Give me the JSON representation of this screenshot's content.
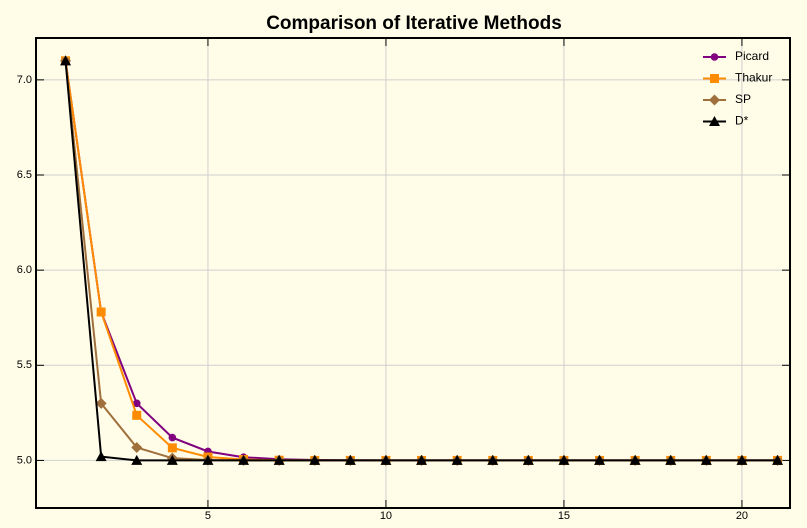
{
  "chart_data": {
    "type": "line",
    "title": "Comparison of Iterative Methods",
    "x": [
      1,
      2,
      3,
      4,
      5,
      6,
      7,
      8,
      9,
      10,
      11,
      12,
      13,
      14,
      15,
      16,
      17,
      18,
      19,
      20,
      21
    ],
    "series": [
      {
        "name": "Picard",
        "color": "#800080",
        "marker": "circle",
        "values": [
          7.1,
          5.78,
          5.3,
          5.12,
          5.047,
          5.017,
          5.006,
          5.002,
          5.001,
          5,
          5,
          5,
          5,
          5,
          5,
          5,
          5,
          5,
          5,
          5,
          5
        ]
      },
      {
        "name": "Thakur",
        "color": "#ff8c00",
        "marker": "square",
        "values": [
          7.1,
          5.78,
          5.237,
          5.066,
          5.018,
          5.005,
          5.001,
          5,
          5,
          5,
          5,
          5,
          5,
          5,
          5,
          5,
          5,
          5,
          5,
          5,
          5
        ]
      },
      {
        "name": "SP",
        "color": "#a0703c",
        "marker": "diamond",
        "values": [
          7.1,
          5.3,
          5.068,
          5.012,
          5.002,
          5,
          5,
          5,
          5,
          5,
          5,
          5,
          5,
          5,
          5,
          5,
          5,
          5,
          5,
          5,
          5
        ]
      },
      {
        "name": "D*",
        "color": "#000000",
        "marker": "triangle",
        "values": [
          7.1,
          5.02,
          5,
          5,
          5,
          5,
          5,
          5,
          5,
          5,
          5,
          5,
          5,
          5,
          5,
          5,
          5,
          5,
          5,
          5,
          5
        ]
      }
    ],
    "xlim": [
      0.17,
      21.35
    ],
    "ylim": [
      4.75,
      7.22
    ],
    "xticks": [
      5,
      10,
      15,
      20
    ],
    "yticks": [
      {
        "value": 5,
        "label": "5.0"
      },
      {
        "value": 5.5,
        "label": "5.5"
      },
      {
        "value": 6,
        "label": "6.0"
      },
      {
        "value": 6.5,
        "label": "6.5"
      },
      {
        "value": 7,
        "label": "7.0"
      }
    ],
    "grid": true,
    "legend": "top-right",
    "background": "#fffde8"
  }
}
